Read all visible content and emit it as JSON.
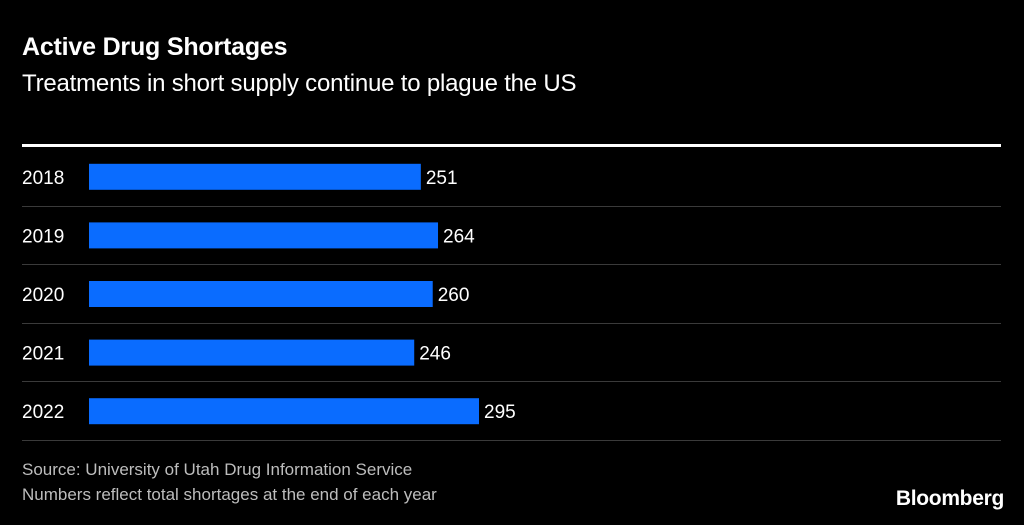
{
  "header": {
    "title": "Active Drug Shortages",
    "subtitle": "Treatments in short supply continue to plague the US"
  },
  "chart_data": {
    "type": "bar",
    "orientation": "horizontal",
    "title": "Active Drug Shortages",
    "subtitle": "Treatments in short supply continue to plague the US",
    "xlabel": "",
    "ylabel": "",
    "categories": [
      "2018",
      "2019",
      "2020",
      "2021",
      "2022"
    ],
    "values": [
      251,
      264,
      260,
      246,
      295
    ],
    "xlim": [
      0,
      295
    ],
    "grid": false,
    "legend": "none",
    "bar_color": "#0a6cff"
  },
  "footer": {
    "source": "Source: University of Utah Drug Information Service",
    "note": "Numbers reflect total shortages at the end of each year",
    "logo": "Bloomberg"
  },
  "colors": {
    "background": "#000000",
    "bar": "#0a6cff",
    "text": "#ffffff",
    "muted": "#bdbdbd",
    "divider": "#3a3a3a"
  }
}
